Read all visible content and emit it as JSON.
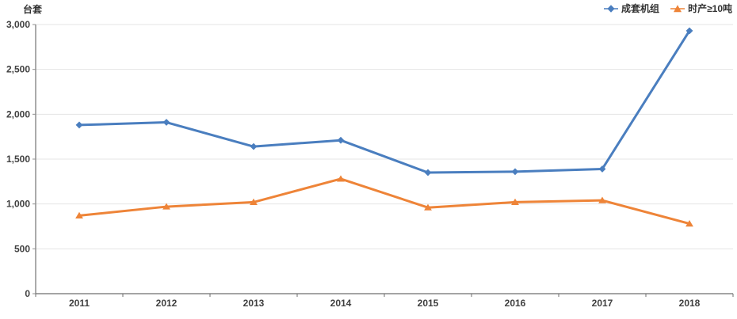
{
  "chart_data": {
    "type": "line",
    "title": "",
    "ylabel": "台套",
    "xlabel": "",
    "categories": [
      "2011",
      "2012",
      "2013",
      "2014",
      "2015",
      "2016",
      "2017",
      "2018"
    ],
    "series": [
      {
        "name": "成套机组",
        "marker": "diamond",
        "color": "#4a7ebf",
        "values": [
          1880,
          1910,
          1640,
          1710,
          1350,
          1360,
          1390,
          2930
        ]
      },
      {
        "name": "时产≥10吨",
        "marker": "triangle",
        "color": "#ee8438",
        "values": [
          870,
          970,
          1020,
          1280,
          960,
          1020,
          1040,
          780
        ]
      }
    ],
    "ylim": [
      0,
      3000
    ],
    "ytick_step": 500,
    "ytick_labels": [
      "0",
      "500",
      "1,000",
      "1,500",
      "2,000",
      "2,500",
      "3,000"
    ],
    "grid": true,
    "legend_position": "top-right",
    "axis_text_color": "#404040",
    "gridline_color": "#e4e4e4",
    "y_axis_color": "#8f8f8f",
    "x_axis_color": "#6e6e6e",
    "background_color": "#ffffff"
  }
}
